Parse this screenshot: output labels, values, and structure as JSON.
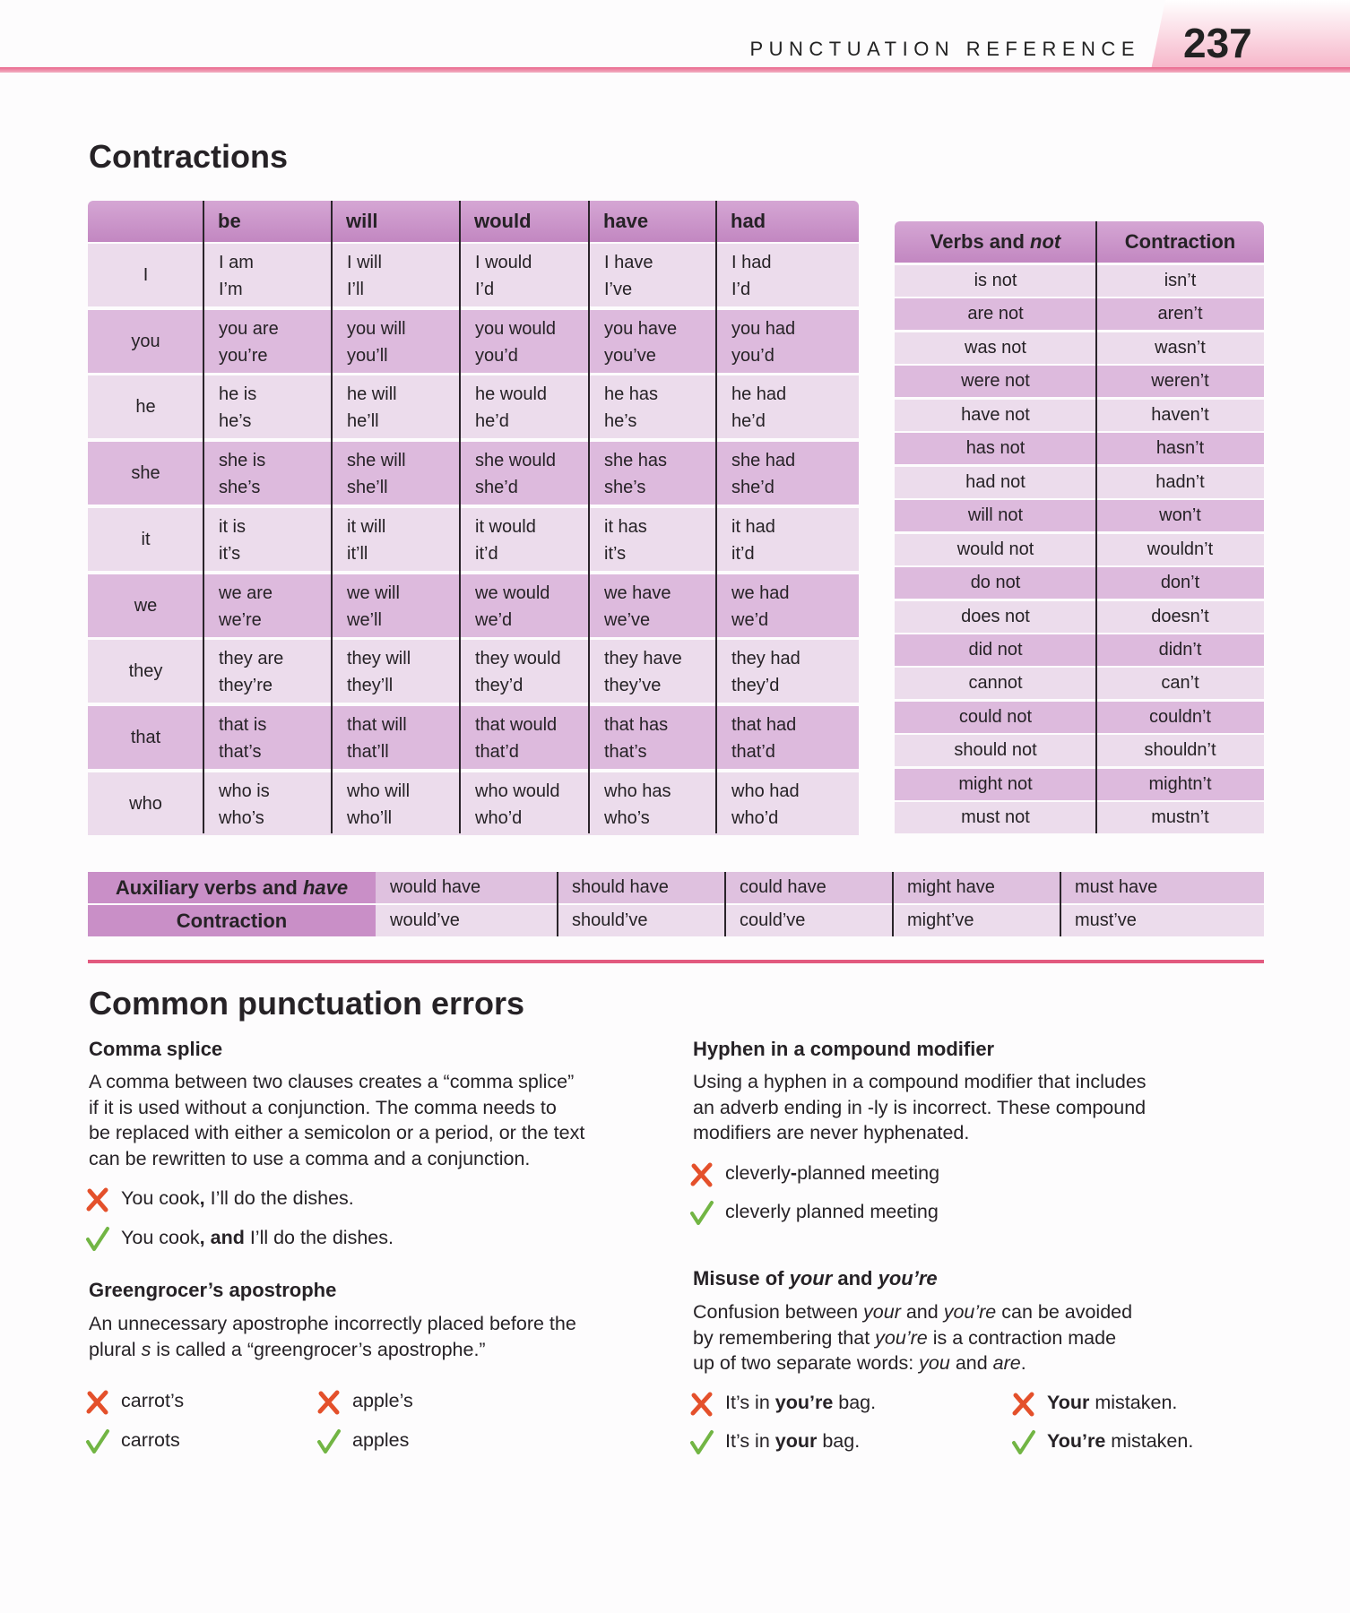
{
  "header": {
    "section": "PUNCTUATION REFERENCE",
    "page": "237"
  },
  "contractions": {
    "title": "Contractions",
    "columns": [
      "be",
      "will",
      "would",
      "have",
      "had"
    ],
    "rows": [
      {
        "subject": "I",
        "cells": [
          [
            "I am",
            "I’m"
          ],
          [
            "I will",
            "I’ll"
          ],
          [
            "I would",
            "I’d"
          ],
          [
            "I have",
            "I’ve"
          ],
          [
            "I had",
            "I’d"
          ]
        ]
      },
      {
        "subject": "you",
        "cells": [
          [
            "you are",
            "you’re"
          ],
          [
            "you will",
            "you’ll"
          ],
          [
            "you would",
            "you’d"
          ],
          [
            "you have",
            "you’ve"
          ],
          [
            "you had",
            "you’d"
          ]
        ]
      },
      {
        "subject": "he",
        "cells": [
          [
            "he is",
            "he’s"
          ],
          [
            "he will",
            "he’ll"
          ],
          [
            "he would",
            "he’d"
          ],
          [
            "he has",
            "he’s"
          ],
          [
            "he had",
            "he’d"
          ]
        ]
      },
      {
        "subject": "she",
        "cells": [
          [
            "she is",
            "she’s"
          ],
          [
            "she will",
            "she’ll"
          ],
          [
            "she would",
            "she’d"
          ],
          [
            "she has",
            "she’s"
          ],
          [
            "she had",
            "she’d"
          ]
        ]
      },
      {
        "subject": "it",
        "cells": [
          [
            "it is",
            "it’s"
          ],
          [
            "it will",
            "it’ll"
          ],
          [
            "it would",
            "it’d"
          ],
          [
            "it has",
            "it’s"
          ],
          [
            "it had",
            "it’d"
          ]
        ]
      },
      {
        "subject": "we",
        "cells": [
          [
            "we are",
            "we’re"
          ],
          [
            "we will",
            "we’ll"
          ],
          [
            "we would",
            "we’d"
          ],
          [
            "we have",
            "we’ve"
          ],
          [
            "we had",
            "we’d"
          ]
        ]
      },
      {
        "subject": "they",
        "cells": [
          [
            "they are",
            "they’re"
          ],
          [
            "they will",
            "they’ll"
          ],
          [
            "they would",
            "they’d"
          ],
          [
            "they have",
            "they’ve"
          ],
          [
            "they had",
            "they’d"
          ]
        ]
      },
      {
        "subject": "that",
        "cells": [
          [
            "that is",
            "that’s"
          ],
          [
            "that will",
            "that’ll"
          ],
          [
            "that would",
            "that’d"
          ],
          [
            "that has",
            "that’s"
          ],
          [
            "that had",
            "that’d"
          ]
        ]
      },
      {
        "subject": "who",
        "cells": [
          [
            "who is",
            "who’s"
          ],
          [
            "who will",
            "who’ll"
          ],
          [
            "who would",
            "who’d"
          ],
          [
            "who has",
            "who’s"
          ],
          [
            "who had",
            "who’d"
          ]
        ]
      }
    ]
  },
  "verbs_not": {
    "headers": [
      [
        {
          "text": "Verbs and "
        },
        {
          "text": "not",
          "style": "italic"
        }
      ],
      "Contraction"
    ],
    "rows": [
      [
        "is not",
        "isn’t"
      ],
      [
        "are not",
        "aren’t"
      ],
      [
        "was not",
        "wasn’t"
      ],
      [
        "were not",
        "weren’t"
      ],
      [
        "have not",
        "haven’t"
      ],
      [
        "has not",
        "hasn’t"
      ],
      [
        "had not",
        "hadn’t"
      ],
      [
        "will not",
        "won’t"
      ],
      [
        "would not",
        "wouldn’t"
      ],
      [
        "do not",
        "don’t"
      ],
      [
        "does not",
        "doesn’t"
      ],
      [
        "did not",
        "didn’t"
      ],
      [
        "cannot",
        "can’t"
      ],
      [
        "could not",
        "couldn’t"
      ],
      [
        "should not",
        "shouldn’t"
      ],
      [
        "might not",
        "mightn’t"
      ],
      [
        "must not",
        "mustn’t"
      ]
    ]
  },
  "auxiliary": {
    "headers": [
      [
        {
          "text": "Auxiliary verbs and "
        },
        {
          "text": "have",
          "style": "italic"
        }
      ],
      "Contraction"
    ],
    "full": [
      "would have",
      "should have",
      "could have",
      "might have",
      "must have"
    ],
    "short": [
      "would’ve",
      "should’ve",
      "could’ve",
      "might’ve",
      "must’ve"
    ]
  },
  "errors": {
    "title": "Common punctuation errors",
    "sections": [
      {
        "heading": "Comma splice",
        "lines": [
          "A comma between two clauses creates a “comma splice”",
          "if it is used without a conjunction. The comma needs to",
          "be replaced with either a semicolon or a period, or the text",
          "can be rewritten to use a comma and a conjunction."
        ],
        "examples": [
          [
            {
              "mark": "wrong",
              "text": [
                {
                  "text": "You cook"
                },
                {
                  "text": ",",
                  "style": "bold"
                },
                {
                  "text": " I’ll do the dishes."
                }
              ]
            },
            {
              "mark": "right",
              "text": [
                {
                  "text": "You cook"
                },
                {
                  "text": ", and",
                  "style": "bold"
                },
                {
                  "text": " I’ll do the dishes."
                }
              ]
            }
          ]
        ]
      },
      {
        "heading": "Greengrocer’s apostrophe",
        "lines": [
          "An unnecessary apostrophe incorrectly placed before the",
          [
            {
              "text": "plural "
            },
            {
              "text": "s",
              "style": "italic"
            },
            {
              "text": " is called a “greengrocer’s apostrophe.”"
            }
          ]
        ],
        "examples": [
          [
            {
              "mark": "wrong",
              "text": "carrot’s"
            },
            {
              "mark": "right",
              "text": "carrots"
            }
          ],
          [
            {
              "mark": "wrong",
              "text": "apple’s"
            },
            {
              "mark": "right",
              "text": "apples"
            }
          ]
        ]
      },
      {
        "heading": "Hyphen in a compound modifier",
        "lines": [
          "Using a hyphen in a compound modifier that includes",
          "an adverb ending in -ly is incorrect. These compound",
          "modifiers are never hyphenated."
        ],
        "examples": [
          [
            {
              "mark": "wrong",
              "text": [
                {
                  "text": "cleverly"
                },
                {
                  "text": "-",
                  "style": "bold"
                },
                {
                  "text": "planned meeting"
                }
              ]
            },
            {
              "mark": "right",
              "text": "cleverly planned meeting"
            }
          ]
        ]
      },
      {
        "heading": [
          {
            "text": "Misuse of "
          },
          {
            "text": "your",
            "style": "italic"
          },
          {
            "text": " and "
          },
          {
            "text": "you’re",
            "style": "italic"
          }
        ],
        "lines": [
          [
            {
              "text": "Confusion between "
            },
            {
              "text": "your",
              "style": "italic"
            },
            {
              "text": " and "
            },
            {
              "text": "you’re",
              "style": "italic"
            },
            {
              "text": " can be avoided"
            }
          ],
          [
            {
              "text": "by remembering that "
            },
            {
              "text": "you’re",
              "style": "italic"
            },
            {
              "text": " is a contraction made"
            }
          ],
          [
            {
              "text": "up of two separate words: "
            },
            {
              "text": "you",
              "style": "italic"
            },
            {
              "text": " and "
            },
            {
              "text": "are",
              "style": "italic"
            },
            {
              "text": "."
            }
          ]
        ],
        "examples": [
          [
            {
              "mark": "wrong",
              "text": [
                {
                  "text": "It’s in "
                },
                {
                  "text": "you’re",
                  "style": "bold"
                },
                {
                  "text": " bag."
                }
              ]
            },
            {
              "mark": "right",
              "text": [
                {
                  "text": "It’s in "
                },
                {
                  "text": "your",
                  "style": "bold"
                },
                {
                  "text": " bag."
                }
              ]
            }
          ],
          [
            {
              "mark": "wrong",
              "text": [
                {
                  "text": "Your",
                  "style": "bold"
                },
                {
                  "text": " mistaken."
                }
              ]
            },
            {
              "mark": "right",
              "text": [
                {
                  "text": "You’re",
                  "style": "bold"
                },
                {
                  "text": " mistaken."
                }
              ]
            }
          ]
        ]
      }
    ]
  }
}
